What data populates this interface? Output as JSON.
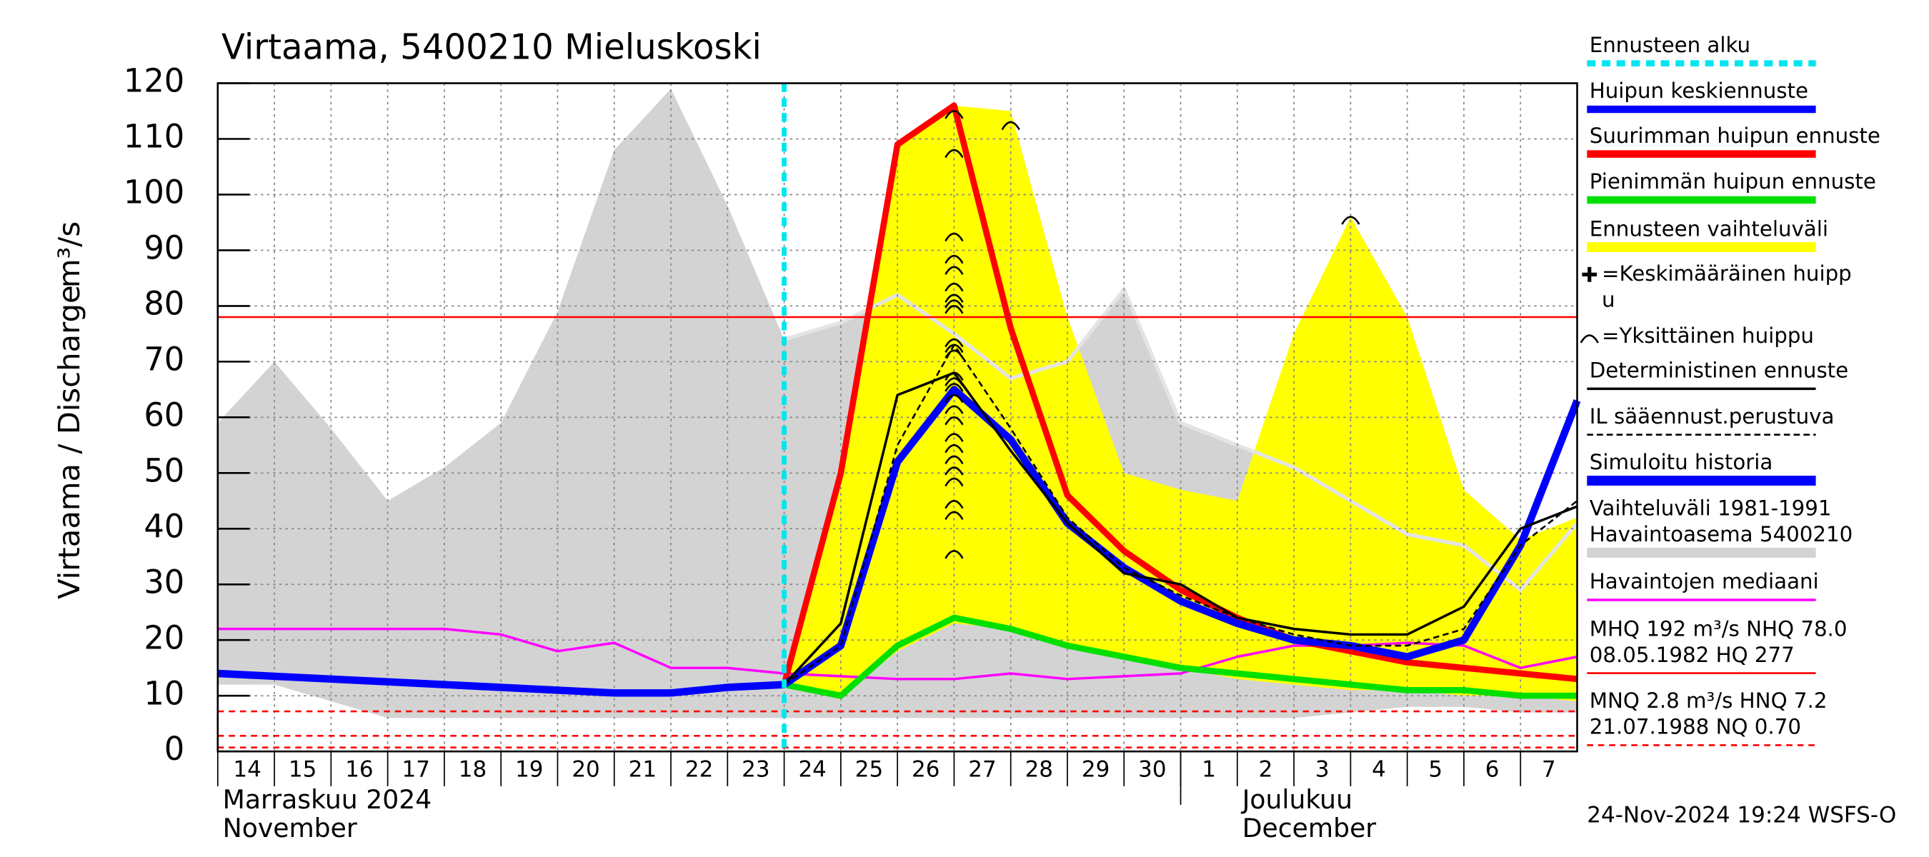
{
  "chart_data": {
    "type": "line",
    "title": "Virtaama, 5400210 Mieluskoski",
    "y_label": "Virtaama / Discharge",
    "y_unit": "m³/s",
    "categories": [
      "14",
      "15",
      "16",
      "17",
      "18",
      "19",
      "20",
      "21",
      "22",
      "23",
      "24",
      "25",
      "26",
      "27",
      "28",
      "29",
      "30",
      "1",
      "2",
      "3",
      "4",
      "5",
      "6",
      "7",
      null
    ],
    "month_labels": [
      {
        "category": "14",
        "lines": [
          "Marraskuu 2024",
          "November"
        ]
      },
      {
        "category": "2",
        "lines": [
          "Joulukuu",
          "December"
        ]
      }
    ],
    "month_boundary": "1",
    "timestamp": "24-Nov-2024 19:24 WSFS-O",
    "ylim": [
      0,
      120
    ],
    "yticks": [
      0,
      10,
      20,
      30,
      40,
      50,
      60,
      70,
      80,
      90,
      100,
      110,
      120
    ],
    "grid": true,
    "forecast_start": "24",
    "forecast_color": "#00e5ee",
    "bands": [
      {
        "color": "#d3d3d3",
        "outline_color": "#e4e4e4",
        "upper": [
          59,
          70,
          58,
          45,
          51,
          59,
          79,
          108,
          119,
          98,
          74,
          77,
          82,
          75,
          67,
          70,
          83,
          59,
          55,
          51,
          45,
          39,
          37,
          29,
          41
        ],
        "lower": [
          12,
          12,
          9,
          6,
          6,
          6,
          6,
          6,
          6,
          6,
          6,
          6,
          6,
          6,
          6,
          6,
          6,
          6,
          6,
          6,
          7,
          8,
          8,
          7,
          7
        ]
      },
      {
        "color": "#ffff00",
        "upper": [
          null,
          null,
          null,
          null,
          null,
          null,
          null,
          null,
          null,
          null,
          12,
          50,
          109,
          116,
          115,
          78,
          50,
          47,
          45,
          75,
          96,
          78,
          47,
          38,
          42
        ],
        "lower": [
          null,
          null,
          null,
          null,
          null,
          null,
          null,
          null,
          null,
          null,
          12,
          10,
          18,
          23,
          22,
          19,
          17,
          15,
          13,
          12,
          11,
          11,
          10,
          10,
          9
        ]
      }
    ],
    "reference_lines": [
      {
        "value": 78,
        "color": "#ff0000",
        "dash": null
      },
      {
        "value": 7.2,
        "color": "#ff0000",
        "dash": "5,4"
      },
      {
        "value": 2.8,
        "color": "#ff0000",
        "dash": "5,4"
      },
      {
        "value": 0.7,
        "color": "#ff0000",
        "dash": "5,4"
      }
    ],
    "series": [
      {
        "color": "#ff00ff",
        "width": 2,
        "dash": null,
        "values": [
          22,
          22,
          22,
          22,
          22,
          21,
          18,
          19.5,
          15,
          15,
          14,
          13.5,
          13,
          13,
          14,
          13,
          13.5,
          14,
          17,
          19,
          19,
          19.5,
          19,
          15,
          17
        ]
      },
      {
        "color": "#00e000",
        "width": 5,
        "dash": null,
        "values": [
          null,
          null,
          null,
          null,
          null,
          null,
          null,
          null,
          null,
          null,
          12,
          10,
          19,
          24,
          22,
          19,
          17,
          15,
          14,
          13,
          12,
          11,
          11,
          10,
          10
        ]
      },
      {
        "color": "#ff0000",
        "width": 5,
        "dash": null,
        "values": [
          null,
          null,
          null,
          null,
          null,
          null,
          null,
          null,
          null,
          null,
          12,
          50,
          109,
          116,
          76,
          46,
          36,
          29,
          24,
          20,
          18,
          16,
          15,
          14,
          13
        ]
      },
      {
        "color": "#0000ff",
        "width": 6,
        "dash": null,
        "values": [
          14,
          13.5,
          13,
          12.5,
          12,
          11.5,
          11,
          10.5,
          10.5,
          11.5,
          12,
          19,
          52,
          65,
          56,
          41,
          33,
          27,
          23,
          20,
          19,
          17,
          20,
          37,
          63
        ]
      },
      {
        "color": "#000000",
        "width": 2,
        "dash": null,
        "values": [
          null,
          null,
          null,
          null,
          null,
          null,
          null,
          null,
          null,
          null,
          12,
          23,
          64,
          68,
          54,
          41,
          32,
          30,
          24,
          22,
          21,
          21,
          26,
          40,
          44
        ]
      },
      {
        "color": "#000000",
        "width": 1.5,
        "dash": "5,3",
        "values": [
          null,
          null,
          null,
          null,
          null,
          null,
          null,
          null,
          null,
          null,
          12,
          19,
          55,
          73,
          58,
          42,
          33,
          28,
          24,
          21,
          19,
          19,
          22,
          37,
          45
        ]
      }
    ],
    "peaks": [
      {
        "category": "27",
        "values": [
          115,
          108,
          93,
          89,
          87,
          84,
          82,
          81,
          80,
          74,
          73,
          72,
          68,
          67,
          66,
          64,
          62,
          60,
          57,
          55,
          53,
          51,
          49,
          45,
          43,
          36
        ]
      },
      {
        "category": "28",
        "values": [
          113
        ]
      },
      {
        "category": "4",
        "values": [
          96
        ]
      }
    ],
    "legend": [
      {
        "lines": [
          "Ennusteen alku"
        ],
        "color": "#00e5ee",
        "width": 5,
        "dash": "7,5"
      },
      {
        "lines": [
          "Huipun keskiennuste"
        ],
        "color": "#0000ff",
        "width": 6,
        "dash": null
      },
      {
        "lines": [
          "Suurimman huipun ennuste"
        ],
        "color": "#ff0000",
        "width": 6,
        "dash": null
      },
      {
        "lines": [
          "Pienimmän huipun ennuste"
        ],
        "color": "#00e000",
        "width": 6,
        "dash": null
      },
      {
        "lines": [
          "Ennusteen vaihteluväli"
        ],
        "color": "#ffff00",
        "width": 8,
        "dash": null
      },
      {
        "lines": [
          "=Keskimääräinen huipp",
          "u"
        ],
        "symbol": "plus"
      },
      {
        "lines": [
          "=Yksittäinen huippu"
        ],
        "symbol": "arc"
      },
      {
        "lines": [
          "Deterministinen ennuste"
        ],
        "color": "#000000",
        "width": 2,
        "dash": null
      },
      {
        "lines": [
          "IL sääennust.perustuva"
        ],
        "color": "#000000",
        "width": 1.5,
        "dash": "5,3"
      },
      {
        "lines": [
          "Simuloitu historia"
        ],
        "color": "#0000ff",
        "width": 8,
        "dash": null
      },
      {
        "lines": [
          "Vaihteluväli 1981-1991",
          " Havaintoasema 5400210"
        ],
        "color": "#d3d3d3",
        "width": 8,
        "dash": null
      },
      {
        "lines": [
          "Havaintojen mediaani"
        ],
        "color": "#ff00ff",
        "width": 2,
        "dash": null
      },
      {
        "lines": [
          "MHQ  192 m³/s NHQ 78.0",
          "08.05.1982 HQ  277"
        ],
        "color": "#ff0000",
        "width": 1.5,
        "dash": null
      },
      {
        "lines": [
          "MNQ  2.8 m³/s HNQ  7.2",
          "21.07.1988 NQ 0.70"
        ],
        "color": "#ff0000",
        "width": 1.5,
        "dash": "5,4"
      }
    ]
  }
}
